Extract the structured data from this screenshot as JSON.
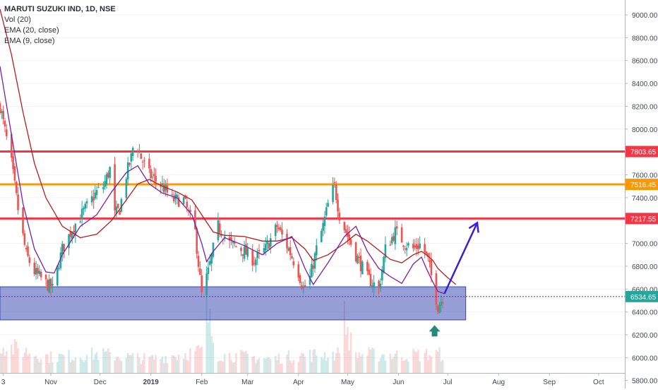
{
  "chart_data": {
    "type": "candlestick",
    "symbol_title": "MARUTI SUZUKI IND, 1D, NSE",
    "indicators": [
      "Vol (20)",
      "EMA (20, close)",
      "EMA (9, close)"
    ],
    "y_ticks": [
      "9000.00",
      "8800.00",
      "8600.00",
      "8400.00",
      "8200.00",
      "8000.00",
      "7800.00",
      "7600.00",
      "7400.00",
      "7200.00",
      "7000.00",
      "6800.00",
      "6600.00",
      "6400.00",
      "6200.00",
      "6000.00",
      "5800.00"
    ],
    "y_range": [
      5730,
      9130
    ],
    "x_ticks": [
      "3",
      "Nov",
      "Dec",
      "2019",
      "Feb",
      "Mar",
      "Apr",
      "May",
      "Jun",
      "Jul",
      "Aug",
      "Sep",
      "Oct"
    ],
    "x_tick_dates": [
      "2018-10-03",
      "2018-11-01",
      "2018-12-01",
      "2019-01-01",
      "2019-02-01",
      "2019-03-01",
      "2019-04-01",
      "2019-05-01",
      "2019-06-01",
      "2019-07-01",
      "2019-08-01",
      "2019-09-01",
      "2019-10-01"
    ],
    "x_range": [
      "2018-10-01",
      "2019-10-17"
    ],
    "horizontal_levels": [
      {
        "value": 7803.65,
        "label": "7803.65",
        "color": "#f23645"
      },
      {
        "value": 7516.45,
        "label": "7516.45",
        "color": "#ff9800"
      },
      {
        "value": 7217.55,
        "label": "7217.55",
        "color": "#f23645"
      }
    ],
    "last_price": {
      "value": 6534.65,
      "label": "6534.65",
      "color": "#26a69a"
    },
    "support_zone": {
      "from_date": "2018-10-01",
      "to_date": "2019-07-12",
      "low": 6330,
      "high": 6620,
      "color": "#3f51b5"
    },
    "ema9_points": [
      [
        "2018-10-01",
        8550
      ],
      [
        "2018-10-08",
        7950
      ],
      [
        "2018-10-15",
        7350
      ],
      [
        "2018-10-22",
        6950
      ],
      [
        "2018-10-29",
        6750
      ],
      [
        "2018-11-03",
        6740
      ],
      [
        "2018-11-08",
        6900
      ],
      [
        "2018-11-19",
        7150
      ],
      [
        "2018-11-29",
        7250
      ],
      [
        "2018-12-08",
        7450
      ],
      [
        "2018-12-17",
        7620
      ],
      [
        "2018-12-24",
        7680
      ],
      [
        "2018-12-31",
        7520
      ],
      [
        "2019-01-08",
        7440
      ],
      [
        "2019-01-17",
        7400
      ],
      [
        "2019-01-26",
        7250
      ],
      [
        "2019-02-01",
        7000
      ],
      [
        "2019-02-04",
        6840
      ],
      [
        "2019-02-08",
        6930
      ],
      [
        "2019-02-15",
        7050
      ],
      [
        "2019-02-27",
        6980
      ],
      [
        "2019-03-10",
        6900
      ],
      [
        "2019-03-19",
        7000
      ],
      [
        "2019-03-28",
        7060
      ],
      [
        "2019-04-05",
        6780
      ],
      [
        "2019-04-10",
        6640
      ],
      [
        "2019-04-19",
        6830
      ],
      [
        "2019-04-29",
        7060
      ],
      [
        "2019-05-06",
        7150
      ],
      [
        "2019-05-13",
        6930
      ],
      [
        "2019-05-20",
        6780
      ],
      [
        "2019-05-27",
        6710
      ],
      [
        "2019-06-03",
        6650
      ],
      [
        "2019-06-10",
        6820
      ],
      [
        "2019-06-15",
        6880
      ],
      [
        "2019-06-18",
        6780
      ],
      [
        "2019-06-22",
        6660
      ],
      [
        "2019-06-25",
        6580
      ],
      [
        "2019-06-29",
        6560
      ]
    ],
    "ema20_points": [
      [
        "2018-10-01",
        9050
      ],
      [
        "2018-10-08",
        8650
      ],
      [
        "2018-10-15",
        8150
      ],
      [
        "2018-10-22",
        7700
      ],
      [
        "2018-10-29",
        7400
      ],
      [
        "2018-11-08",
        7150
      ],
      [
        "2018-11-19",
        7050
      ],
      [
        "2018-11-29",
        7080
      ],
      [
        "2018-12-08",
        7200
      ],
      [
        "2018-12-17",
        7380
      ],
      [
        "2018-12-24",
        7520
      ],
      [
        "2018-12-31",
        7560
      ],
      [
        "2019-01-08",
        7500
      ],
      [
        "2019-01-17",
        7450
      ],
      [
        "2019-01-26",
        7380
      ],
      [
        "2019-02-01",
        7250
      ],
      [
        "2019-02-08",
        7100
      ],
      [
        "2019-02-15",
        7070
      ],
      [
        "2019-02-27",
        7060
      ],
      [
        "2019-03-10",
        7020
      ],
      [
        "2019-03-19",
        7020
      ],
      [
        "2019-03-28",
        7050
      ],
      [
        "2019-04-05",
        6950
      ],
      [
        "2019-04-10",
        6850
      ],
      [
        "2019-04-19",
        6900
      ],
      [
        "2019-04-29",
        7000
      ],
      [
        "2019-05-06",
        7080
      ],
      [
        "2019-05-13",
        7020
      ],
      [
        "2019-05-20",
        6940
      ],
      [
        "2019-05-27",
        6860
      ],
      [
        "2019-06-03",
        6830
      ],
      [
        "2019-06-10",
        6900
      ],
      [
        "2019-06-15",
        6930
      ],
      [
        "2019-06-18",
        6900
      ],
      [
        "2019-06-22",
        6850
      ],
      [
        "2019-06-25",
        6780
      ],
      [
        "2019-07-01",
        6700
      ],
      [
        "2019-07-06",
        6640
      ]
    ],
    "candle_anchor_closes": [
      [
        "2018-10-01",
        8200
      ],
      [
        "2018-10-08",
        7700
      ],
      [
        "2018-10-12",
        7300
      ],
      [
        "2018-10-17",
        6900
      ],
      [
        "2018-10-22",
        6750
      ],
      [
        "2018-10-29",
        6650
      ],
      [
        "2018-11-02",
        6600
      ],
      [
        "2018-11-08",
        6950
      ],
      [
        "2018-11-15",
        7150
      ],
      [
        "2018-11-22",
        7300
      ],
      [
        "2018-11-29",
        7450
      ],
      [
        "2018-12-03",
        7500
      ],
      [
        "2018-12-07",
        7650
      ],
      [
        "2018-12-10",
        7250
      ],
      [
        "2018-12-13",
        7300
      ],
      [
        "2018-12-17",
        7600
      ],
      [
        "2018-12-20",
        7750
      ],
      [
        "2018-12-22",
        7920
      ],
      [
        "2018-12-26",
        7750
      ],
      [
        "2018-12-31",
        7600
      ],
      [
        "2019-01-08",
        7500
      ],
      [
        "2019-01-14",
        7380
      ],
      [
        "2019-01-21",
        7380
      ],
      [
        "2019-01-28",
        7100
      ],
      [
        "2019-02-01",
        6550
      ],
      [
        "2019-02-05",
        6750
      ],
      [
        "2019-02-11",
        7150
      ],
      [
        "2019-02-18",
        7000
      ],
      [
        "2019-02-25",
        6950
      ],
      [
        "2019-03-05",
        6850
      ],
      [
        "2019-03-12",
        6950
      ],
      [
        "2019-03-19",
        7150
      ],
      [
        "2019-03-26",
        6950
      ],
      [
        "2019-04-01",
        6750
      ],
      [
        "2019-04-04",
        6600
      ],
      [
        "2019-04-08",
        6700
      ],
      [
        "2019-04-12",
        6950
      ],
      [
        "2019-04-16",
        7150
      ],
      [
        "2019-04-20",
        7400
      ],
      [
        "2019-04-23",
        7500
      ],
      [
        "2019-04-26",
        7250
      ],
      [
        "2019-04-30",
        7100
      ],
      [
        "2019-05-06",
        6900
      ],
      [
        "2019-05-13",
        6700
      ],
      [
        "2019-05-20",
        6600
      ],
      [
        "2019-05-24",
        6950
      ],
      [
        "2019-05-30",
        7100
      ],
      [
        "2019-06-05",
        7000
      ],
      [
        "2019-06-10",
        6950
      ],
      [
        "2019-06-15",
        7000
      ],
      [
        "2019-06-19",
        6850
      ],
      [
        "2019-06-22",
        6650
      ],
      [
        "2019-06-25",
        6450
      ],
      [
        "2019-06-28",
        6530
      ]
    ],
    "volume_profile": [
      [
        "2018-10-01",
        0.45
      ],
      [
        "2018-10-15",
        0.35
      ],
      [
        "2018-11-01",
        0.25
      ],
      [
        "2018-12-01",
        0.3
      ],
      [
        "2019-01-01",
        0.22
      ],
      [
        "2019-02-01",
        0.35
      ],
      [
        "2019-02-04",
        1.0
      ],
      [
        "2019-02-10",
        0.3
      ],
      [
        "2019-03-15",
        0.22
      ],
      [
        "2019-04-01",
        0.28
      ],
      [
        "2019-04-25",
        0.3
      ],
      [
        "2019-04-28",
        0.95
      ],
      [
        "2019-05-05",
        0.3
      ],
      [
        "2019-06-01",
        0.28
      ],
      [
        "2019-06-29",
        0.3
      ]
    ],
    "projection_arrow": {
      "from": [
        "2019-06-29",
        6560
      ],
      "to": [
        "2019-07-19",
        7180
      ],
      "color": "#3a1fd6"
    },
    "marker_arrow": {
      "date": "2019-06-23",
      "value": 6210,
      "color": "#26897c"
    },
    "colors": {
      "up": "#26a69a",
      "down": "#ef5350",
      "ema9": "#7b1fa2",
      "ema20": "#b71c1c",
      "axis_text": "#434651",
      "grid": "#e0e3eb"
    }
  }
}
